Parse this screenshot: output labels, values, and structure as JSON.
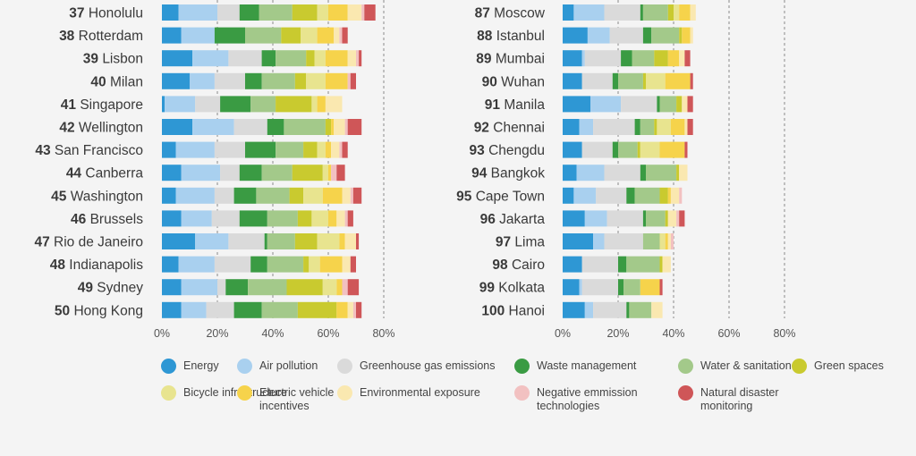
{
  "chart_data": [
    {
      "type": "bar",
      "stacked": true,
      "orientation": "horizontal",
      "xlim": [
        0,
        80
      ],
      "ticks": [
        "0%",
        "20%",
        "40%",
        "60%",
        "80%"
      ],
      "categories": [
        {
          "rank": "37",
          "city": "Honolulu"
        },
        {
          "rank": "38",
          "city": "Rotterdam"
        },
        {
          "rank": "39",
          "city": "Lisbon"
        },
        {
          "rank": "40",
          "city": "Milan"
        },
        {
          "rank": "41",
          "city": "Singapore"
        },
        {
          "rank": "42",
          "city": "Wellington"
        },
        {
          "rank": "43",
          "city": "San Francisco"
        },
        {
          "rank": "44",
          "city": "Canberra"
        },
        {
          "rank": "45",
          "city": "Washington"
        },
        {
          "rank": "46",
          "city": "Brussels"
        },
        {
          "rank": "47",
          "city": "Rio de Janeiro"
        },
        {
          "rank": "48",
          "city": "Indianapolis"
        },
        {
          "rank": "49",
          "city": "Sydney"
        },
        {
          "rank": "50",
          "city": "Hong Kong"
        }
      ],
      "series": [
        {
          "name": "Energy",
          "values": [
            6,
            7,
            11,
            10,
            1,
            11,
            5,
            7,
            5,
            7,
            12,
            6,
            7,
            7
          ]
        },
        {
          "name": "Air pollution",
          "values": [
            14,
            12,
            13,
            9,
            11,
            15,
            14,
            14,
            14,
            11,
            12,
            13,
            13,
            9
          ]
        },
        {
          "name": "Greenhouse gas emissions",
          "values": [
            8,
            0,
            12,
            11,
            9,
            12,
            11,
            7,
            7,
            10,
            13,
            13,
            3,
            10
          ]
        },
        {
          "name": "Waste management",
          "values": [
            7,
            11,
            5,
            6,
            11,
            6,
            11,
            8,
            8,
            10,
            1,
            6,
            8,
            10
          ]
        },
        {
          "name": "Water & sanitation",
          "values": [
            12,
            13,
            11,
            12,
            9,
            15,
            10,
            11,
            12,
            11,
            10,
            13,
            14,
            13
          ]
        },
        {
          "name": "Green spaces",
          "values": [
            9,
            7,
            3,
            4,
            13,
            2,
            5,
            11,
            5,
            5,
            8,
            2,
            13,
            14
          ]
        },
        {
          "name": "Bicycle infrastructure",
          "values": [
            4,
            6,
            4,
            7,
            2,
            0,
            3,
            2,
            7,
            6,
            8,
            4,
            5,
            0
          ]
        },
        {
          "name": "Electric vehicle incentives",
          "values": [
            7,
            6,
            8,
            8,
            3,
            1,
            2,
            1,
            7,
            3,
            2,
            8,
            2,
            4
          ]
        },
        {
          "name": "Environmental exposure",
          "values": [
            5,
            2,
            3,
            0,
            6,
            4,
            3,
            0,
            3,
            3,
            4,
            3,
            0,
            2
          ]
        },
        {
          "name": "Negative emmission technologies",
          "values": [
            1,
            1,
            1,
            1,
            0,
            1,
            1,
            2,
            1,
            1,
            0,
            0,
            2,
            1
          ]
        },
        {
          "name": "Natural disaster monitoring",
          "values": [
            4,
            2,
            1,
            2,
            0,
            5,
            2,
            3,
            3,
            2,
            1,
            2,
            4,
            2
          ]
        }
      ]
    },
    {
      "type": "bar",
      "stacked": true,
      "orientation": "horizontal",
      "xlim": [
        0,
        80
      ],
      "ticks": [
        "0%",
        "20%",
        "40%",
        "60%",
        "80%"
      ],
      "categories": [
        {
          "rank": "87",
          "city": "Moscow"
        },
        {
          "rank": "88",
          "city": "Istanbul"
        },
        {
          "rank": "89",
          "city": "Mumbai"
        },
        {
          "rank": "90",
          "city": "Wuhan"
        },
        {
          "rank": "91",
          "city": "Manila"
        },
        {
          "rank": "92",
          "city": "Chennai"
        },
        {
          "rank": "93",
          "city": "Chengdu"
        },
        {
          "rank": "94",
          "city": "Bangkok"
        },
        {
          "rank": "95",
          "city": "Cape Town"
        },
        {
          "rank": "96",
          "city": "Jakarta"
        },
        {
          "rank": "97",
          "city": "Lima"
        },
        {
          "rank": "98",
          "city": "Cairo"
        },
        {
          "rank": "99",
          "city": "Kolkata"
        },
        {
          "rank": "100",
          "city": "Hanoi"
        }
      ],
      "series": [
        {
          "name": "Energy",
          "values": [
            4,
            9,
            7,
            7,
            10,
            6,
            7,
            5,
            4,
            8,
            11,
            7,
            6,
            8
          ]
        },
        {
          "name": "Air pollution",
          "values": [
            11,
            8,
            1,
            0,
            11,
            5,
            0,
            10,
            8,
            8,
            4,
            0,
            1,
            3
          ]
        },
        {
          "name": "Greenhouse gas emissions",
          "values": [
            13,
            12,
            13,
            11,
            13,
            15,
            11,
            13,
            11,
            13,
            14,
            13,
            13,
            12
          ]
        },
        {
          "name": "Waste management",
          "values": [
            1,
            3,
            4,
            2,
            1,
            2,
            2,
            2,
            3,
            1,
            0,
            3,
            2,
            1
          ]
        },
        {
          "name": "Water & sanitation",
          "values": [
            9,
            10,
            8,
            9,
            6,
            5,
            7,
            11,
            9,
            7,
            6,
            12,
            6,
            8
          ]
        },
        {
          "name": "Green spaces",
          "values": [
            2,
            1,
            5,
            1,
            2,
            1,
            1,
            1,
            3,
            1,
            0,
            1,
            0,
            0
          ]
        },
        {
          "name": "Bicycle infrastructure",
          "values": [
            2,
            0,
            0,
            7,
            0,
            5,
            7,
            0,
            0,
            0,
            2,
            0,
            0,
            0
          ]
        },
        {
          "name": "Electric vehicle incentives",
          "values": [
            4,
            3,
            4,
            9,
            0,
            5,
            9,
            0,
            1,
            0,
            1,
            0,
            7,
            0
          ]
        },
        {
          "name": "Environmental exposure",
          "values": [
            2,
            1,
            2,
            0,
            2,
            1,
            0,
            3,
            3,
            3,
            1,
            3,
            0,
            4
          ]
        },
        {
          "name": "Negative emmission technologies",
          "values": [
            0,
            0,
            0,
            0,
            0,
            0,
            0,
            0,
            1,
            1,
            1,
            0,
            0,
            0
          ]
        },
        {
          "name": "Natural disaster monitoring",
          "values": [
            0,
            0,
            2,
            1,
            2,
            2,
            1,
            0,
            0,
            2,
            0,
            0,
            1,
            0
          ]
        }
      ]
    }
  ],
  "legend": [
    {
      "label": "Energy",
      "color": "#2e97d4"
    },
    {
      "label": "Air pollution",
      "color": "#a9d0ef"
    },
    {
      "label": "Greenhouse gas emissions",
      "color": "#dadada"
    },
    {
      "label": "Waste management",
      "color": "#3a9b43"
    },
    {
      "label": "Water & sanitation",
      "color": "#a3c98a"
    },
    {
      "label": "Green spaces",
      "color": "#c9ca2f"
    },
    {
      "label": "Bicycle infrastructure",
      "color": "#e8e48f"
    },
    {
      "label": "Electric vehicle incentives",
      "color": "#f6d34b"
    },
    {
      "label": "Environmental exposure",
      "color": "#fae8b0"
    },
    {
      "label": "Negative emmission technologies",
      "color": "#f2c1c1"
    },
    {
      "label": "Natural disaster monitoring",
      "color": "#cf5658"
    }
  ]
}
